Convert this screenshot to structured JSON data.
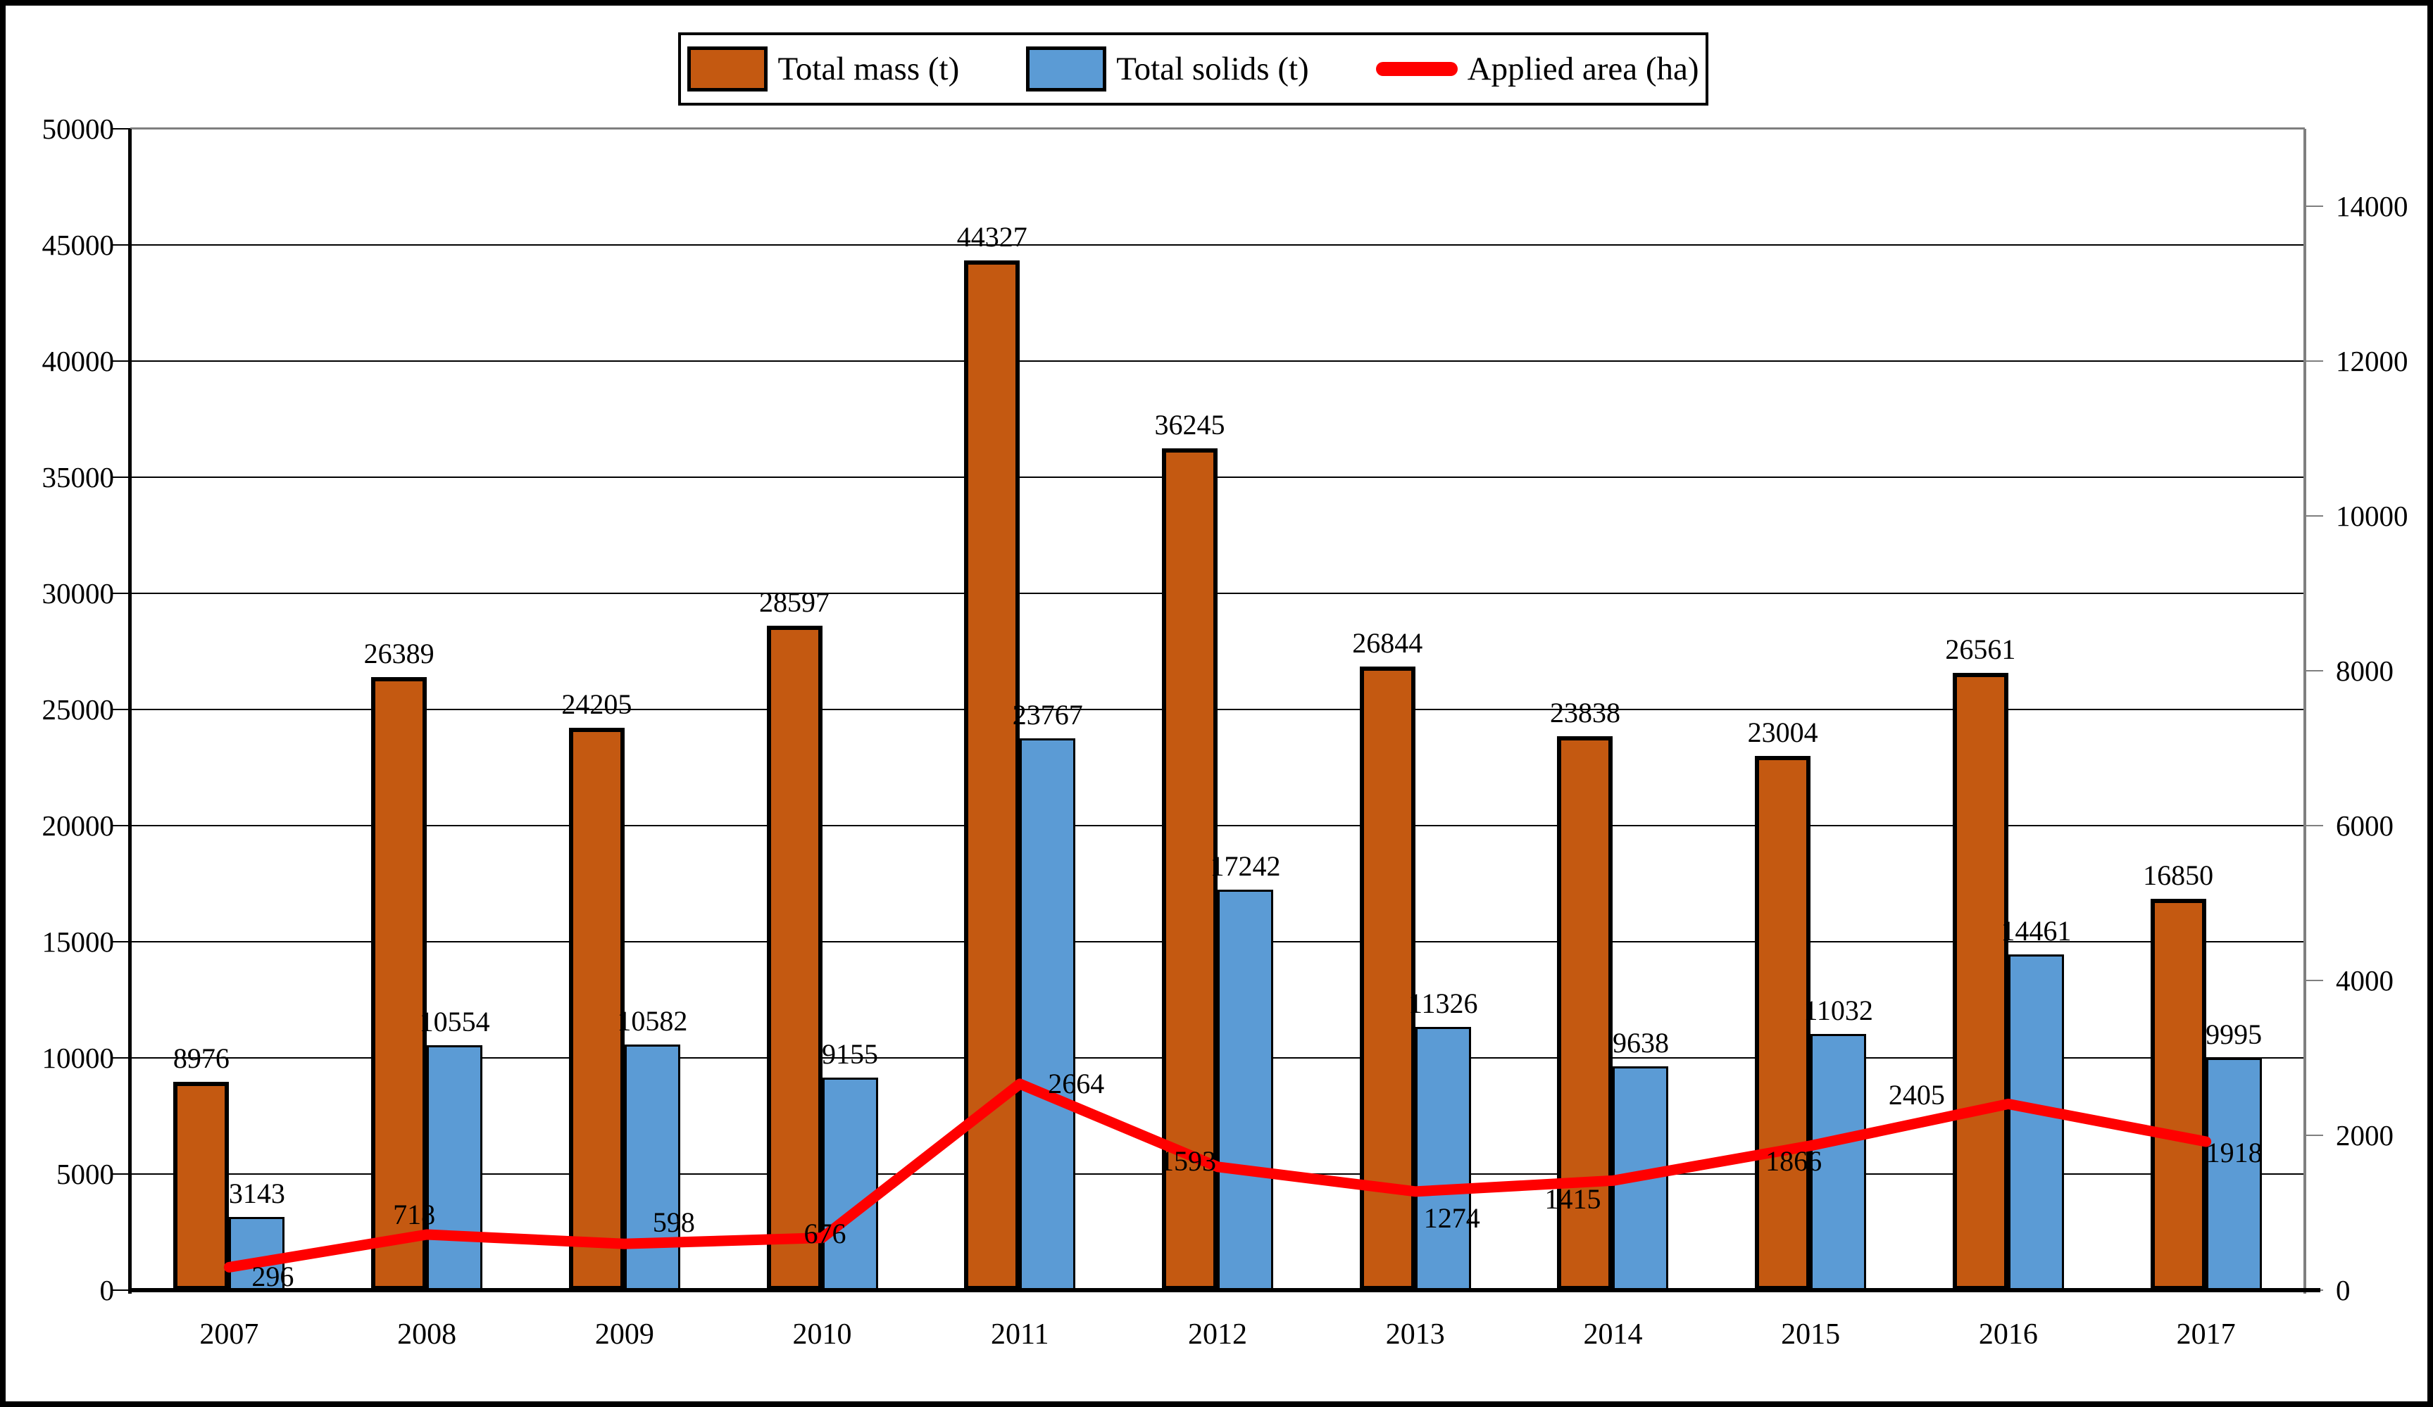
{
  "chart_data": {
    "type": "bar",
    "subtype": "grouped-bars-with-line-overlay",
    "categories": [
      "2007",
      "2008",
      "2009",
      "2010",
      "2011",
      "2012",
      "2013",
      "2014",
      "2015",
      "2016",
      "2017"
    ],
    "series": [
      {
        "name": "Total mass (t)",
        "type": "bar",
        "axis": "left",
        "color": "#C45911",
        "values": [
          8976,
          26389,
          24205,
          28597,
          44327,
          36245,
          26844,
          23838,
          23004,
          26561,
          16850
        ]
      },
      {
        "name": "Total solids (t)",
        "type": "bar",
        "axis": "left",
        "color": "#5B9BD5",
        "values": [
          3143,
          10554,
          10582,
          9155,
          23767,
          17242,
          11326,
          9638,
          11032,
          14461,
          9995
        ]
      },
      {
        "name": "Applied area (ha)",
        "type": "line",
        "axis": "right",
        "color": "#FF0000",
        "values": [
          296,
          718,
          598,
          676,
          2664,
          1593,
          1274,
          1415,
          1866,
          2405,
          1918
        ]
      }
    ],
    "left_axis": {
      "min": 0,
      "max": 50000,
      "step": 5000,
      "tick_labels": [
        "0",
        "5000",
        "10000",
        "15000",
        "20000",
        "25000",
        "30000",
        "35000",
        "40000",
        "45000",
        "50000"
      ]
    },
    "right_axis": {
      "min": 0,
      "max": 15000,
      "step": 2000,
      "tick_labels": [
        "0",
        "2000",
        "4000",
        "6000",
        "8000",
        "10000",
        "12000",
        "14000"
      ]
    },
    "title": "",
    "xlabel": "",
    "ylabel": "",
    "legend_position": "top",
    "grid": "horizontal"
  },
  "legend": {
    "items": [
      {
        "label": "Total mass (t)"
      },
      {
        "label": "Total solids (t)"
      },
      {
        "label": "Applied area (ha)"
      }
    ]
  },
  "colors": {
    "bar_mass": "#C45911",
    "bar_solids": "#5B9BD5",
    "line_area": "#FF0000",
    "gridline": "#000000",
    "secondary_axis": "#7F7F7F",
    "border": "#000000"
  }
}
